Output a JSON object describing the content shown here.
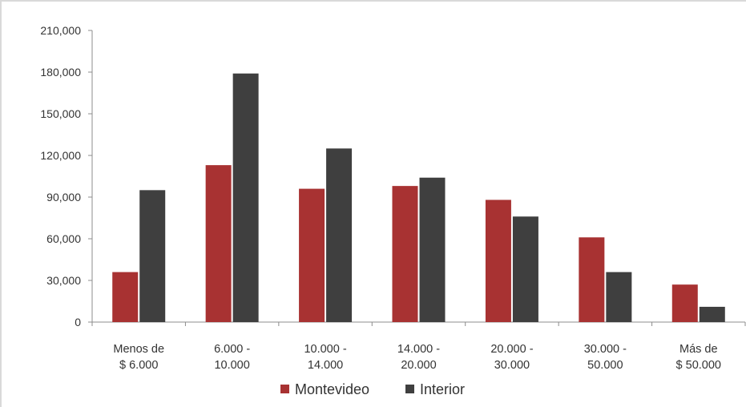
{
  "chart_data": {
    "type": "bar",
    "categories": [
      [
        "Menos de",
        "$ 6.000"
      ],
      [
        "6.000 -",
        "10.000"
      ],
      [
        "10.000 -",
        "14.000"
      ],
      [
        "14.000 -",
        "20.000"
      ],
      [
        "20.000 -",
        "30.000"
      ],
      [
        "30.000 -",
        "50.000"
      ],
      [
        "Más de",
        "$ 50.000"
      ]
    ],
    "series": [
      {
        "name": "Montevideo",
        "color": "#a83232",
        "values": [
          36000,
          113000,
          96000,
          98000,
          88000,
          61000,
          27000
        ]
      },
      {
        "name": "Interior",
        "color": "#3f3f3f",
        "values": [
          95000,
          179000,
          125000,
          104000,
          76000,
          36000,
          11000
        ]
      }
    ],
    "ylim": [
      0,
      210000
    ],
    "yticks": [
      0,
      30000,
      60000,
      90000,
      120000,
      150000,
      180000,
      210000
    ],
    "ytick_labels": [
      "0",
      "30,000",
      "60,000",
      "90,000",
      "120,000",
      "150,000",
      "180,000",
      "210,000"
    ],
    "title": "",
    "xlabel": "",
    "ylabel": "",
    "grid": false,
    "legend_position": "bottom"
  }
}
